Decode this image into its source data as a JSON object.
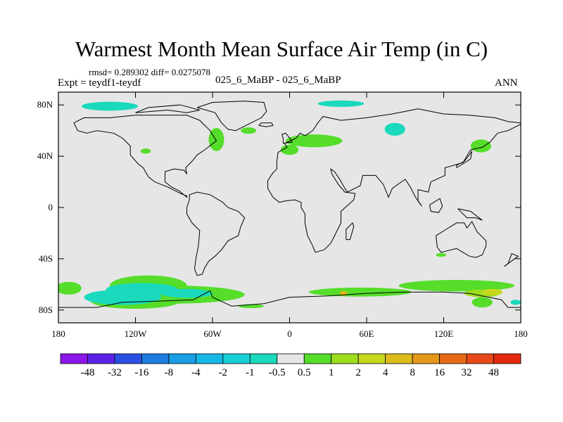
{
  "chart_data": {
    "type": "heatmap",
    "title": "Warmest Month Mean Surface Air Temp (in C)",
    "stats_text": "rmsd= 0.289302 diff= 0.0275078",
    "left_label": "Expt = teydf1-teydf",
    "center_label": "025_6_MaBP - 025_6_MaBP",
    "right_label": "ANN",
    "x_ticks": [
      "180",
      "120W",
      "60W",
      "0",
      "60E",
      "120E",
      "180"
    ],
    "x_tick_lons": [
      -180,
      -120,
      -60,
      0,
      60,
      120,
      180
    ],
    "y_ticks": [
      "80N",
      "40N",
      "0",
      "40S",
      "80S"
    ],
    "y_tick_lats": [
      80,
      40,
      0,
      -40,
      -80
    ],
    "xlim": [
      -180,
      180
    ],
    "ylim": [
      -90,
      90
    ],
    "colorbar": {
      "labels": [
        "-48",
        "-32",
        "-16",
        "-8",
        "-4",
        "-2",
        "-1",
        "-0.5",
        "0.5",
        "1",
        "2",
        "4",
        "8",
        "16",
        "32",
        "48"
      ],
      "colors": [
        "#8a16e8",
        "#5a23e6",
        "#2a4fe4",
        "#1e7ce0",
        "#1a9ee6",
        "#18b8e6",
        "#19cfd8",
        "#1ad9bc",
        "#e6e6e6",
        "#55dd2a",
        "#9edc1e",
        "#c6d81e",
        "#dcbb1a",
        "#e4971a",
        "#e86a18",
        "#e8491a",
        "#e42a0e"
      ]
    },
    "anomaly_regions": [
      {
        "name": "arctic-canada",
        "cx": -140,
        "cy": 79,
        "rx": 22,
        "ry": 3.5,
        "color": "#1ad9bc"
      },
      {
        "name": "greenland-sea",
        "cx": 40,
        "cy": 81,
        "rx": 18,
        "ry": 2.5,
        "color": "#1ad9bc"
      },
      {
        "name": "siberia",
        "cx": 82,
        "cy": 61,
        "rx": 8,
        "ry": 5,
        "color": "#1ad9bc"
      },
      {
        "name": "hudson-bay",
        "cx": -57,
        "cy": 53,
        "rx": 6,
        "ry": 9,
        "color": "#55dd2a"
      },
      {
        "name": "north-atlantic",
        "cx": 19,
        "cy": 52,
        "rx": 22,
        "ry": 5,
        "color": "#55dd2a"
      },
      {
        "name": "western-europe",
        "cx": 0,
        "cy": 45,
        "rx": 7,
        "ry": 4,
        "color": "#55dd2a"
      },
      {
        "name": "kamchatka",
        "cx": 149,
        "cy": 48,
        "rx": 8,
        "ry": 5,
        "color": "#55dd2a"
      },
      {
        "name": "pacific-small",
        "cx": -112,
        "cy": 44,
        "rx": 4,
        "ry": 2,
        "color": "#55dd2a"
      },
      {
        "name": "greenland-south",
        "cx": -32,
        "cy": 60,
        "rx": 6,
        "ry": 2.5,
        "color": "#55dd2a"
      },
      {
        "name": "australia",
        "cx": 118,
        "cy": -37,
        "rx": 4,
        "ry": 1.5,
        "color": "#55dd2a"
      },
      {
        "name": "south-pacific-1",
        "cx": -110,
        "cy": -61,
        "rx": 30,
        "ry": 8,
        "color": "#55dd2a"
      },
      {
        "name": "south-pacific-2",
        "cx": -90,
        "cy": -68,
        "rx": 55,
        "ry": 7,
        "color": "#55dd2a"
      },
      {
        "name": "south-pacific-3",
        "cx": -120,
        "cy": -73,
        "rx": 35,
        "ry": 6,
        "color": "#55dd2a"
      },
      {
        "name": "south-pacific-cyan-1",
        "cx": -115,
        "cy": -64,
        "rx": 28,
        "ry": 5,
        "color": "#1ad9bc"
      },
      {
        "name": "south-pacific-cyan-2",
        "cx": -130,
        "cy": -70,
        "rx": 30,
        "ry": 6,
        "color": "#1ad9bc"
      },
      {
        "name": "south-pacific-cyan-3",
        "cx": -80,
        "cy": -67,
        "rx": 20,
        "ry": 3.5,
        "color": "#1ad9bc"
      },
      {
        "name": "dateline-south",
        "cx": -172,
        "cy": -63,
        "rx": 10,
        "ry": 5,
        "color": "#55dd2a"
      },
      {
        "name": "southern-ocean-east",
        "cx": 55,
        "cy": -66,
        "rx": 40,
        "ry": 3.5,
        "color": "#55dd2a"
      },
      {
        "name": "southern-ocean-east-2",
        "cx": 130,
        "cy": -61,
        "rx": 45,
        "ry": 4.5,
        "color": "#55dd2a"
      },
      {
        "name": "tasman-yellow",
        "cx": 150,
        "cy": -67,
        "rx": 14,
        "ry": 3,
        "color": "#9edc1e"
      },
      {
        "name": "ross-yellow",
        "cx": 158,
        "cy": -66,
        "rx": 8,
        "ry": 2.5,
        "color": "#c6d81e"
      },
      {
        "name": "east-cyan",
        "cx": 176,
        "cy": -74,
        "rx": 4,
        "ry": 2,
        "color": "#1ad9bc"
      },
      {
        "name": "atlantic-orange",
        "cx": 42,
        "cy": -67,
        "rx": 3,
        "ry": 2,
        "color": "#dcbb1a"
      },
      {
        "name": "antarctic-green",
        "cx": 150,
        "cy": -74,
        "rx": 8,
        "ry": 4,
        "color": "#55dd2a"
      },
      {
        "name": "weddell",
        "cx": -30,
        "cy": -77,
        "rx": 10,
        "ry": 1.5,
        "color": "#55dd2a"
      }
    ],
    "coastlines": [
      {
        "name": "north-america",
        "points": [
          [
            -168,
            66
          ],
          [
            -160,
            70
          ],
          [
            -140,
            70
          ],
          [
            -120,
            72
          ],
          [
            -95,
            72
          ],
          [
            -80,
            72
          ],
          [
            -70,
            68
          ],
          [
            -62,
            60
          ],
          [
            -57,
            52
          ],
          [
            -66,
            45
          ],
          [
            -72,
            41
          ],
          [
            -76,
            36
          ],
          [
            -81,
            31
          ],
          [
            -80,
            26
          ],
          [
            -82,
            29
          ],
          [
            -90,
            30
          ],
          [
            -97,
            28
          ],
          [
            -97,
            20
          ],
          [
            -92,
            16
          ],
          [
            -86,
            13
          ],
          [
            -80,
            8
          ],
          [
            -80,
            9
          ],
          [
            -85,
            11
          ],
          [
            -95,
            16
          ],
          [
            -105,
            20
          ],
          [
            -110,
            24
          ],
          [
            -114,
            31
          ],
          [
            -118,
            34
          ],
          [
            -124,
            41
          ],
          [
            -124,
            48
          ],
          [
            -130,
            54
          ],
          [
            -137,
            58
          ],
          [
            -150,
            60
          ],
          [
            -158,
            58
          ],
          [
            -165,
            60
          ],
          [
            -168,
            66
          ]
        ]
      },
      {
        "name": "greenland",
        "points": [
          [
            -72,
            78
          ],
          [
            -60,
            82
          ],
          [
            -35,
            83
          ],
          [
            -20,
            82
          ],
          [
            -18,
            75
          ],
          [
            -22,
            70
          ],
          [
            -30,
            66
          ],
          [
            -42,
            60
          ],
          [
            -48,
            61
          ],
          [
            -53,
            66
          ],
          [
            -58,
            74
          ],
          [
            -72,
            78
          ]
        ]
      },
      {
        "name": "south-america",
        "points": [
          [
            -78,
            10
          ],
          [
            -72,
            12
          ],
          [
            -62,
            10
          ],
          [
            -52,
            4
          ],
          [
            -48,
            0
          ],
          [
            -40,
            -3
          ],
          [
            -35,
            -8
          ],
          [
            -38,
            -15
          ],
          [
            -40,
            -22
          ],
          [
            -48,
            -26
          ],
          [
            -53,
            -33
          ],
          [
            -58,
            -38
          ],
          [
            -63,
            -42
          ],
          [
            -66,
            -47
          ],
          [
            -68,
            -52
          ],
          [
            -72,
            -53
          ],
          [
            -74,
            -48
          ],
          [
            -73,
            -40
          ],
          [
            -71,
            -30
          ],
          [
            -70,
            -18
          ],
          [
            -76,
            -12
          ],
          [
            -80,
            -5
          ],
          [
            -80,
            0
          ],
          [
            -78,
            6
          ],
          [
            -78,
            10
          ]
        ]
      },
      {
        "name": "eurasia-africa",
        "points": [
          [
            -10,
            36
          ],
          [
            -9,
            43
          ],
          [
            -2,
            47
          ],
          [
            -4,
            50
          ],
          [
            5,
            54
          ],
          [
            8,
            58
          ],
          [
            12,
            56
          ],
          [
            18,
            60
          ],
          [
            22,
            66
          ],
          [
            26,
            71
          ],
          [
            40,
            68
          ],
          [
            60,
            70
          ],
          [
            80,
            73
          ],
          [
            100,
            77
          ],
          [
            120,
            73
          ],
          [
            140,
            72
          ],
          [
            160,
            70
          ],
          [
            170,
            67
          ],
          [
            180,
            66
          ],
          [
            180,
            65
          ],
          [
            170,
            60
          ],
          [
            162,
            58
          ],
          [
            156,
            51
          ],
          [
            150,
            47
          ],
          [
            141,
            45
          ],
          [
            135,
            35
          ],
          [
            121,
            31
          ],
          [
            121,
            25
          ],
          [
            110,
            20
          ],
          [
            108,
            12
          ],
          [
            100,
            14
          ],
          [
            100,
            5
          ],
          [
            103,
            1
          ],
          [
            98,
            8
          ],
          [
            94,
            16
          ],
          [
            90,
            22
          ],
          [
            80,
            15
          ],
          [
            77,
            8
          ],
          [
            73,
            18
          ],
          [
            67,
            25
          ],
          [
            57,
            25
          ],
          [
            55,
            17
          ],
          [
            45,
            12
          ],
          [
            43,
            15
          ],
          [
            39,
            22
          ],
          [
            35,
            28
          ],
          [
            32,
            30
          ],
          [
            33,
            26
          ],
          [
            38,
            18
          ],
          [
            43,
            12
          ],
          [
            51,
            11
          ],
          [
            50,
            6
          ],
          [
            40,
            -3
          ],
          [
            40,
            -12
          ],
          [
            35,
            -22
          ],
          [
            32,
            -28
          ],
          [
            27,
            -33
          ],
          [
            20,
            -35
          ],
          [
            18,
            -30
          ],
          [
            14,
            -22
          ],
          [
            12,
            -12
          ],
          [
            12,
            -5
          ],
          [
            9,
            0
          ],
          [
            9,
            4
          ],
          [
            4,
            6
          ],
          [
            -4,
            5
          ],
          [
            -8,
            4
          ],
          [
            -13,
            8
          ],
          [
            -17,
            15
          ],
          [
            -17,
            21
          ],
          [
            -13,
            27
          ],
          [
            -10,
            30
          ],
          [
            -10,
            36
          ]
        ]
      },
      {
        "name": "australia-outline",
        "points": [
          [
            114,
            -22
          ],
          [
            122,
            -17
          ],
          [
            130,
            -12
          ],
          [
            136,
            -12
          ],
          [
            138,
            -16
          ],
          [
            142,
            -11
          ],
          [
            146,
            -19
          ],
          [
            153,
            -26
          ],
          [
            153,
            -30
          ],
          [
            150,
            -37
          ],
          [
            145,
            -39
          ],
          [
            140,
            -38
          ],
          [
            135,
            -35
          ],
          [
            130,
            -32
          ],
          [
            118,
            -35
          ],
          [
            115,
            -31
          ],
          [
            114,
            -22
          ]
        ]
      },
      {
        "name": "antarctica-outline",
        "points": [
          [
            -180,
            -78
          ],
          [
            -150,
            -78
          ],
          [
            -130,
            -74
          ],
          [
            -100,
            -73
          ],
          [
            -75,
            -72
          ],
          [
            -62,
            -65
          ],
          [
            -60,
            -70
          ],
          [
            -45,
            -77
          ],
          [
            -20,
            -75
          ],
          [
            0,
            -70
          ],
          [
            30,
            -69
          ],
          [
            60,
            -67
          ],
          [
            90,
            -66
          ],
          [
            120,
            -66
          ],
          [
            140,
            -67
          ],
          [
            165,
            -72
          ],
          [
            170,
            -78
          ],
          [
            180,
            -78
          ]
        ]
      },
      {
        "name": "iceland",
        "points": [
          [
            -24,
            64
          ],
          [
            -22,
            66
          ],
          [
            -14,
            66
          ],
          [
            -13,
            64
          ],
          [
            -18,
            63
          ],
          [
            -24,
            64
          ]
        ]
      },
      {
        "name": "uk",
        "points": [
          [
            -5,
            50
          ],
          [
            2,
            51
          ],
          [
            1,
            53
          ],
          [
            -3,
            58
          ],
          [
            -6,
            57
          ],
          [
            -5,
            54
          ],
          [
            -5,
            50
          ]
        ]
      },
      {
        "name": "madagascar",
        "points": [
          [
            44,
            -25
          ],
          [
            47,
            -25
          ],
          [
            50,
            -15
          ],
          [
            49,
            -12
          ],
          [
            44,
            -17
          ],
          [
            44,
            -25
          ]
        ]
      },
      {
        "name": "new-guinea",
        "points": [
          [
            131,
            -1
          ],
          [
            141,
            -3
          ],
          [
            150,
            -10
          ],
          [
            145,
            -8
          ],
          [
            138,
            -8
          ],
          [
            131,
            -1
          ]
        ]
      },
      {
        "name": "borneo",
        "points": [
          [
            109,
            2
          ],
          [
            117,
            7
          ],
          [
            119,
            1
          ],
          [
            116,
            -4
          ],
          [
            110,
            -3
          ],
          [
            109,
            2
          ]
        ]
      },
      {
        "name": "japan",
        "points": [
          [
            130,
            31
          ],
          [
            135,
            34
          ],
          [
            141,
            38
          ],
          [
            142,
            44
          ],
          [
            140,
            41
          ],
          [
            136,
            36
          ],
          [
            130,
            33
          ],
          [
            130,
            31
          ]
        ]
      },
      {
        "name": "arctic-islands",
        "points": [
          [
            -120,
            74
          ],
          [
            -95,
            76
          ],
          [
            -80,
            74
          ],
          [
            -70,
            76
          ],
          [
            -85,
            80
          ],
          [
            -110,
            78
          ],
          [
            -120,
            74
          ]
        ]
      },
      {
        "name": "new-zealand",
        "points": [
          [
            167,
            -46
          ],
          [
            174,
            -41
          ],
          [
            178,
            -38
          ],
          [
            173,
            -36
          ],
          [
            170,
            -44
          ],
          [
            167,
            -46
          ]
        ]
      }
    ]
  }
}
